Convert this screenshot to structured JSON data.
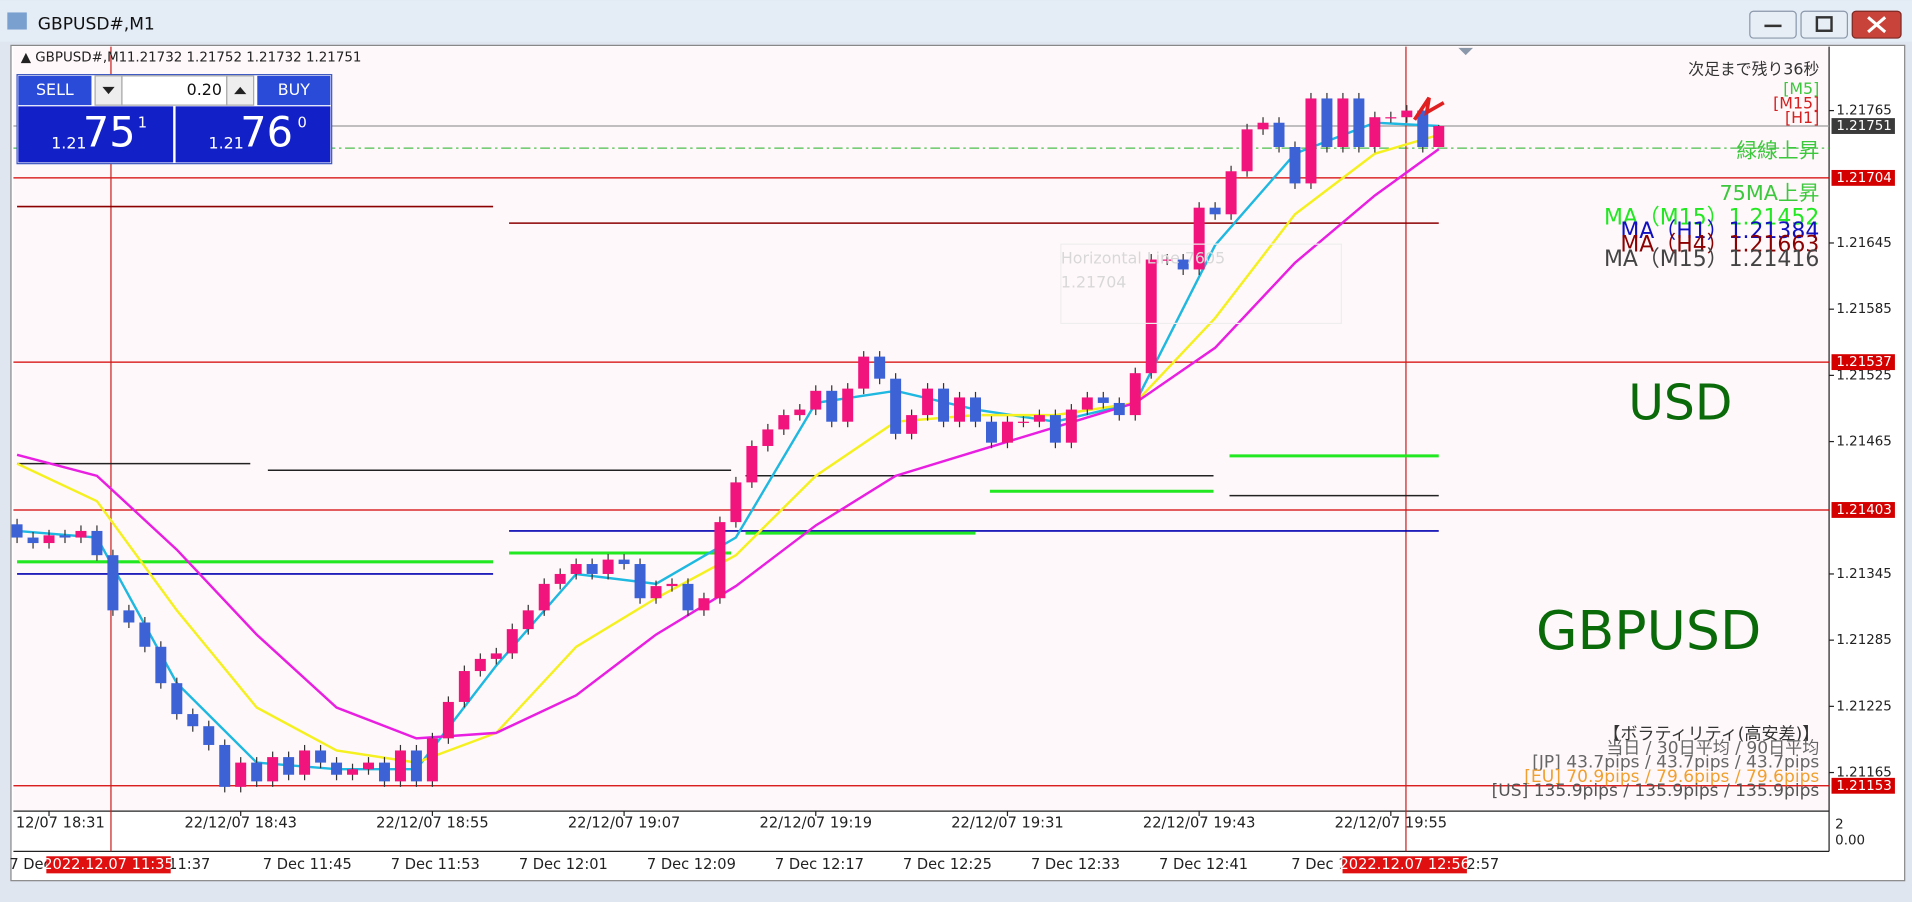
{
  "window": {
    "title": "GBPUSD#,M1"
  },
  "header": {
    "symbol": "GBPUSD#,M1"
  },
  "trade": {
    "sell": "SELL",
    "lots": "0.20",
    "buy": "BUY",
    "sell_big": "1.21",
    "sell_pips": "75",
    "sell_frac": "1",
    "buy_big": "1.21",
    "buy_pips": "76",
    "buy_frac": "0"
  },
  "chart_data": {
    "type": "candlestick",
    "categories": [
      null,
      null,
      "12/07 18:31",
      null,
      null,
      null,
      null,
      null,
      null,
      null,
      null,
      null,
      null,
      null,
      "22/12/07 18:43",
      null,
      null,
      null,
      null,
      null,
      null,
      null,
      null,
      null,
      null,
      null,
      "22/12/07 18:55",
      null,
      null,
      null,
      null,
      null,
      null,
      null,
      null,
      null,
      null,
      null,
      "22/12/07 19:07",
      null,
      null,
      null,
      null,
      null,
      null,
      null,
      null,
      null,
      null,
      null,
      "22/12/07 19:19",
      null,
      null,
      null,
      null,
      null,
      null,
      null,
      null,
      null,
      null,
      null,
      "22/12/07 19:31",
      null,
      null,
      null,
      null,
      null,
      null,
      null,
      null,
      null,
      null,
      null,
      "22/12/07 19:43",
      null,
      null,
      null,
      null,
      null,
      null,
      null,
      null,
      null,
      null,
      null,
      "22/12/07 19:55",
      null,
      null,
      null
    ],
    "open": [
      1.2139,
      1.21378,
      1.21373,
      1.2138,
      1.21378,
      1.21384,
      1.21362,
      1.21312,
      1.21301,
      1.21279,
      1.21246,
      1.21218,
      1.21207,
      1.2119,
      1.21152,
      1.21174,
      1.21157,
      1.21179,
      1.21163,
      1.21185,
      1.21174,
      1.21163,
      1.21168,
      1.21174,
      1.21157,
      1.21185,
      1.21157,
      1.21196,
      1.21229,
      1.21257,
      1.21268,
      1.21273,
      1.21295,
      1.21312,
      1.21336,
      1.21345,
      1.21354,
      1.21345,
      1.21358,
      1.21354,
      1.21323,
      1.21334,
      1.21336,
      1.21312,
      1.21323,
      1.21392,
      1.21428,
      1.21461,
      1.21476,
      1.21489,
      1.21494,
      1.21511,
      1.21483,
      1.21513,
      1.21542,
      1.21522,
      1.21472,
      1.21489,
      1.21513,
      1.21483,
      1.21505,
      1.21483,
      1.21464,
      1.21483,
      1.21483,
      1.21489,
      1.21464,
      1.21494,
      1.21505,
      1.215,
      1.21489,
      1.21527,
      1.2163,
      1.2163,
      1.21621,
      1.21677,
      1.21671,
      1.2171,
      1.21748,
      1.21754,
      1.21732,
      1.21699,
      1.21776,
      1.21732,
      1.21776,
      1.21732,
      1.21759,
      1.21759,
      1.21765,
      1.21732
    ],
    "high": [
      1.21395,
      1.21383,
      1.21385,
      1.21385,
      1.21389,
      1.21389,
      1.21367,
      1.21317,
      1.21306,
      1.21284,
      1.21251,
      1.21223,
      1.21212,
      1.21195,
      1.21179,
      1.21179,
      1.21184,
      1.21184,
      1.2119,
      1.2119,
      1.21179,
      1.21173,
      1.21179,
      1.21179,
      1.2119,
      1.2119,
      1.21201,
      1.21234,
      1.21262,
      1.21273,
      1.21278,
      1.213,
      1.21317,
      1.21341,
      1.2135,
      1.21359,
      1.21359,
      1.21363,
      1.21363,
      1.21359,
      1.21339,
      1.21341,
      1.21341,
      1.21328,
      1.21397,
      1.21433,
      1.21466,
      1.21481,
      1.21494,
      1.21499,
      1.21516,
      1.21516,
      1.21518,
      1.21547,
      1.21547,
      1.21527,
      1.21494,
      1.21518,
      1.21518,
      1.2151,
      1.2151,
      1.21488,
      1.21488,
      1.21488,
      1.21494,
      1.21494,
      1.21499,
      1.2151,
      1.2151,
      1.21505,
      1.21532,
      1.21635,
      1.21635,
      1.21635,
      1.21682,
      1.21682,
      1.21715,
      1.21753,
      1.21759,
      1.21759,
      1.21737,
      1.21781,
      1.21781,
      1.21781,
      1.21781,
      1.21764,
      1.21764,
      1.2177,
      1.2177,
      1.21752
    ],
    "low": [
      1.21373,
      1.21368,
      1.21368,
      1.21373,
      1.21373,
      1.21357,
      1.21307,
      1.21296,
      1.21274,
      1.21241,
      1.21213,
      1.21202,
      1.21185,
      1.21147,
      1.21147,
      1.21152,
      1.21152,
      1.21158,
      1.21158,
      1.21169,
      1.21158,
      1.21158,
      1.21163,
      1.21152,
      1.21152,
      1.21152,
      1.21152,
      1.21191,
      1.21224,
      1.21252,
      1.21263,
      1.21268,
      1.2129,
      1.21307,
      1.21331,
      1.2134,
      1.2134,
      1.2134,
      1.21349,
      1.21318,
      1.21318,
      1.21329,
      1.21307,
      1.21307,
      1.21318,
      1.21387,
      1.21423,
      1.21456,
      1.21471,
      1.21484,
      1.21489,
      1.21478,
      1.21478,
      1.21508,
      1.21517,
      1.21467,
      1.21467,
      1.21484,
      1.21478,
      1.21478,
      1.21478,
      1.21459,
      1.21459,
      1.21478,
      1.21478,
      1.21459,
      1.21459,
      1.21489,
      1.21495,
      1.21484,
      1.21484,
      1.21522,
      1.21625,
      1.21616,
      1.21616,
      1.21666,
      1.21666,
      1.21705,
      1.21743,
      1.21727,
      1.21694,
      1.21694,
      1.21727,
      1.21727,
      1.21727,
      1.21727,
      1.21754,
      1.21754,
      1.21727,
      1.21732
    ],
    "close": [
      1.21378,
      1.21373,
      1.2138,
      1.21378,
      1.21384,
      1.21362,
      1.21312,
      1.21301,
      1.21279,
      1.21246,
      1.21218,
      1.21207,
      1.2119,
      1.21152,
      1.21174,
      1.21157,
      1.21179,
      1.21163,
      1.21185,
      1.21174,
      1.21163,
      1.21168,
      1.21174,
      1.21157,
      1.21185,
      1.21157,
      1.21196,
      1.21229,
      1.21257,
      1.21268,
      1.21273,
      1.21295,
      1.21312,
      1.21336,
      1.21345,
      1.21354,
      1.21345,
      1.21358,
      1.21354,
      1.21323,
      1.21334,
      1.21336,
      1.21312,
      1.21323,
      1.21392,
      1.21428,
      1.21461,
      1.21476,
      1.21489,
      1.21494,
      1.21511,
      1.21483,
      1.21513,
      1.21542,
      1.21522,
      1.21472,
      1.21489,
      1.21513,
      1.21483,
      1.21505,
      1.21483,
      1.21464,
      1.21483,
      1.21483,
      1.21489,
      1.21464,
      1.21494,
      1.21505,
      1.215,
      1.21489,
      1.21527,
      1.2163,
      1.2163,
      1.21621,
      1.21677,
      1.21671,
      1.2171,
      1.21748,
      1.21754,
      1.21732,
      1.21699,
      1.21776,
      1.21732,
      1.21776,
      1.21732,
      1.21759,
      1.21759,
      1.21765,
      1.21732,
      1.21751
    ],
    "up_color": "#f0147c",
    "down_color": "#3d62d6",
    "ylim": [
      1.2113,
      1.21823
    ],
    "yticks": [
      1.21765,
      1.21645,
      1.21585,
      1.21525,
      1.21465,
      1.21345,
      1.21285,
      1.21225,
      1.21165
    ],
    "series": [
      {
        "color": "#1fb8e0",
        "x": [
          0,
          5,
          10,
          15,
          20,
          25,
          30,
          35,
          40,
          45,
          50,
          55,
          60,
          65,
          70,
          75,
          80,
          85,
          89
        ],
        "values": [
          1.21384,
          1.21378,
          1.21246,
          1.21174,
          1.21168,
          1.21168,
          1.21262,
          1.21345,
          1.21336,
          1.21378,
          1.215,
          1.21511,
          1.21494,
          1.21483,
          1.215,
          1.21643,
          1.21726,
          1.21754,
          1.21751
        ]
      },
      {
        "color": "#f5f020",
        "x": [
          0,
          5,
          10,
          15,
          20,
          25,
          30,
          35,
          40,
          45,
          50,
          55,
          60,
          65,
          70,
          75,
          80,
          85,
          89
        ],
        "values": [
          1.21445,
          1.21411,
          1.21312,
          1.21224,
          1.21185,
          1.21174,
          1.21201,
          1.21279,
          1.21323,
          1.21362,
          1.21434,
          1.21483,
          1.21489,
          1.21489,
          1.215,
          1.21577,
          1.21671,
          1.21726,
          1.21743
        ]
      },
      {
        "color": "#e81ee0",
        "x": [
          0,
          5,
          10,
          15,
          20,
          25,
          30,
          35,
          40,
          45,
          50,
          55,
          60,
          65,
          70,
          75,
          80,
          85,
          89
        ],
        "values": [
          1.21453,
          1.21434,
          1.21367,
          1.2129,
          1.21224,
          1.21196,
          1.21201,
          1.21235,
          1.2129,
          1.21334,
          1.21389,
          1.21434,
          1.21456,
          1.21478,
          1.215,
          1.2155,
          1.21627,
          1.21688,
          1.2173
        ]
      }
    ],
    "steps": [
      {
        "color": "#8b0000",
        "parts": [
          {
            "from": 0,
            "to": 29.8,
            "value": 1.21678
          },
          {
            "from": 30.8,
            "to": 89,
            "value": 1.21663
          }
        ]
      },
      {
        "color": "#0000b0",
        "parts": [
          {
            "from": 0,
            "to": 29.8,
            "value": 1.21345
          },
          {
            "from": 30.8,
            "to": 89,
            "value": 1.21384
          }
        ]
      },
      {
        "color": "#22e822",
        "parts": [
          {
            "from": 0,
            "to": 29.8,
            "value": 1.21356
          },
          {
            "from": 30.8,
            "to": 44.7,
            "value": 1.21364
          },
          {
            "from": 45.6,
            "to": 60,
            "value": 1.21382
          },
          {
            "from": 60.9,
            "to": 74.9,
            "value": 1.2142
          },
          {
            "from": 75.9,
            "to": 89,
            "value": 1.21452
          }
        ]
      },
      {
        "color": "#222222",
        "parts": [
          {
            "from": 0,
            "to": 14.6,
            "value": 1.21445
          },
          {
            "from": 15.7,
            "to": 44.7,
            "value": 1.21439
          },
          {
            "from": 45.6,
            "to": 74.9,
            "value": 1.21434
          },
          {
            "from": 75.9,
            "to": 89,
            "value": 1.21416
          }
        ]
      }
    ],
    "levels": [
      {
        "value": 1.21704,
        "color": "#d40000"
      },
      {
        "value": 1.21537,
        "color": "#d40000"
      },
      {
        "value": 1.21403,
        "color": "#d40000"
      },
      {
        "value": 1.21153,
        "color": "#d40000"
      }
    ],
    "bid": {
      "value": 1.21751,
      "color": "#9a9a9a"
    },
    "signal_line": {
      "value": 1.21731,
      "color": "#4cc04c"
    },
    "annotations": [
      {
        "text": "次足まで残り36秒",
        "color": "#333333",
        "size": 13,
        "y": 57
      },
      {
        "text": "[M5]",
        "color": "#3cc83c",
        "size": 13,
        "y": 73
      },
      {
        "text": "[M15]",
        "color": "#d42020",
        "size": 13,
        "y": 85
      },
      {
        "text": "[H1]",
        "color": "#d42020",
        "size": 13,
        "y": 97
      },
      {
        "text": "緑線上昇",
        "color": "#3cc83c",
        "size": 17,
        "y": 124
      },
      {
        "text": "75MA上昇",
        "color": "#3cc83c",
        "size": 17,
        "y": 159
      },
      {
        "text": "MA（M15）1.21452",
        "color": "#22e822",
        "size": 18,
        "y": 179
      },
      {
        "text": "MA（H1）1.21384",
        "color": "#1010c0",
        "size": 18,
        "y": 190
      },
      {
        "text": "MA（H4）1.21663",
        "color": "#8b0000",
        "size": 18,
        "y": 201
      },
      {
        "text": "MA（M15）1.21416",
        "color": "#444444",
        "size": 18,
        "y": 213
      }
    ]
  },
  "big_labels": {
    "usd": "USD",
    "pair": "GBPUSD"
  },
  "volatility": [
    "【ボラティリティ(高安差)】",
    "当日 / 30日平均 / 90日平均",
    "[JP] 43.7pips / 43.7pips / 43.7pips",
    "[EU] 70.9pips / 79.6pips / 79.6pips",
    "[US] 135.9pips / 135.9pips / 135.9pips"
  ],
  "ghost": {
    "name": "Horizontal Line 7605",
    "price": "1.21704"
  },
  "lower_axis": [
    "7 Dec",
    "c 11:37",
    "7 Dec 11:45",
    "7 Dec 11:53",
    "7 Dec 12:01",
    "7 Dec 12:09",
    "7 Dec 12:17",
    "7 Dec 12:25",
    "7 Dec 12:33",
    "7 Dec 12:41",
    "7 Dec 1",
    "2:57"
  ],
  "cursor_times": [
    "2022.12.07 11:35",
    "2022.12.07 12:56"
  ],
  "sub_scale": [
    "2",
    "0.00"
  ]
}
